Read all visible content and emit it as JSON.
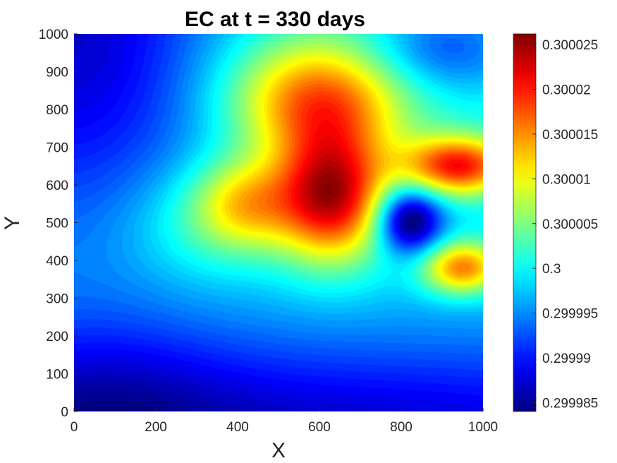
{
  "chart_data": {
    "type": "heatmap",
    "title": "EC at t = 330 days",
    "xlabel": "X",
    "ylabel": "Y",
    "xlim": [
      0,
      1000
    ],
    "ylim": [
      0,
      1000
    ],
    "x_ticks": [
      "0",
      "200",
      "400",
      "600",
      "800",
      "1000"
    ],
    "y_ticks": [
      "0",
      "100",
      "200",
      "300",
      "400",
      "500",
      "600",
      "700",
      "800",
      "900",
      "1000"
    ],
    "colormap": "jet",
    "colorbar": {
      "min": 0.299984,
      "max": 0.3000262,
      "ticks": [
        {
          "value": 0.299985,
          "label": "0.299985"
        },
        {
          "value": 0.29999,
          "label": "0.29999"
        },
        {
          "value": 0.299995,
          "label": "0.299995"
        },
        {
          "value": 0.3,
          "label": "0.3"
        },
        {
          "value": 0.300005,
          "label": "0.300005"
        },
        {
          "value": 0.30001,
          "label": "0.30001"
        },
        {
          "value": 0.300015,
          "label": "0.300015"
        },
        {
          "value": 0.30002,
          "label": "0.30002"
        },
        {
          "value": 0.300025,
          "label": "0.300025"
        }
      ]
    },
    "background": 0.2999988,
    "features": [
      {
        "kind": "peak",
        "x": 630,
        "y": 570,
        "sx": 95,
        "sy": 120,
        "amp": 2.45e-05
      },
      {
        "kind": "peak",
        "x": 940,
        "y": 650,
        "sx": 95,
        "sy": 55,
        "amp": 2.1e-05
      },
      {
        "kind": "peak",
        "x": 950,
        "y": 380,
        "sx": 70,
        "sy": 50,
        "amp": 1.75e-05
      },
      {
        "kind": "peak",
        "x": 590,
        "y": 820,
        "sx": 150,
        "sy": 110,
        "amp": 1.65e-05
      },
      {
        "kind": "peak",
        "x": 420,
        "y": 550,
        "sx": 90,
        "sy": 85,
        "amp": 1.2e-05
      },
      {
        "kind": "peak",
        "x": 800,
        "y": 950,
        "sx": 300,
        "sy": 160,
        "amp": 4e-06
      },
      {
        "kind": "peak",
        "x": 310,
        "y": 500,
        "sx": 130,
        "sy": 110,
        "amp": 4.5e-06
      },
      {
        "kind": "trough",
        "x": 820,
        "y": 505,
        "sx": 55,
        "sy": 60,
        "amp": 1.75e-05
      },
      {
        "kind": "trough",
        "x": 0,
        "y": 1000,
        "sx": 260,
        "sy": 380,
        "amp": 1.15e-05
      },
      {
        "kind": "trough",
        "x": 900,
        "y": 960,
        "sx": 140,
        "sy": 90,
        "amp": 9.5e-06
      },
      {
        "kind": "trough",
        "x": 500,
        "y": -80,
        "sx": 1200,
        "sy": 200,
        "amp": 1.2e-05
      },
      {
        "kind": "trough",
        "x": 60,
        "y": 20,
        "sx": 220,
        "sy": 180,
        "amp": 4e-06
      }
    ]
  }
}
